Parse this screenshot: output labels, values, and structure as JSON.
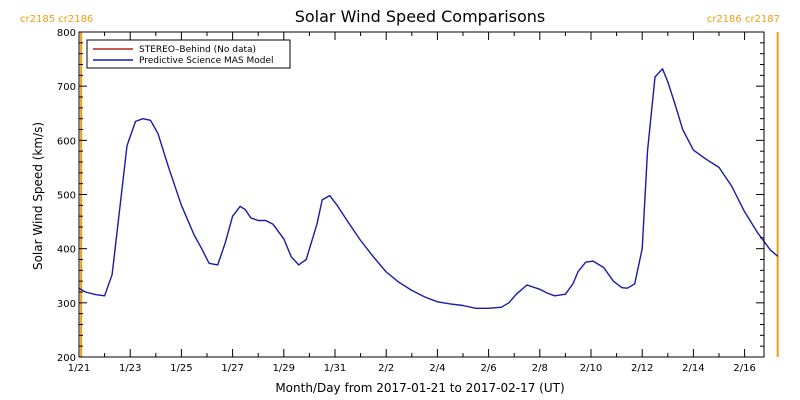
{
  "chart_data": {
    "type": "line",
    "title": "Solar Wind Speed Comparisons",
    "xlabel": "Month/Day from 2017-01-21 to 2017-02-17 (UT)",
    "ylabel": "Solar Wind Speed (km/s)",
    "ylim": [
      200,
      800
    ],
    "xlim": [
      "2017-01-21",
      "2017-02-17"
    ],
    "y_ticks": [
      200,
      300,
      400,
      500,
      600,
      700,
      800
    ],
    "x_ticks": [
      {
        "label": "1/21",
        "date": "2017-01-21"
      },
      {
        "label": "1/23",
        "date": "2017-01-23"
      },
      {
        "label": "1/25",
        "date": "2017-01-25"
      },
      {
        "label": "1/27",
        "date": "2017-01-27"
      },
      {
        "label": "1/29",
        "date": "2017-01-29"
      },
      {
        "label": "1/31",
        "date": "2017-01-31"
      },
      {
        "label": "2/2",
        "date": "2017-02-02"
      },
      {
        "label": "2/4",
        "date": "2017-02-04"
      },
      {
        "label": "2/6",
        "date": "2017-02-06"
      },
      {
        "label": "2/8",
        "date": "2017-02-08"
      },
      {
        "label": "2/10",
        "date": "2017-02-10"
      },
      {
        "label": "2/12",
        "date": "2017-02-12"
      },
      {
        "label": "2/14",
        "date": "2017-02-14"
      },
      {
        "label": "2/16",
        "date": "2017-02-16"
      }
    ],
    "legend_position": "top-left",
    "grid": false,
    "carrington_markers": [
      {
        "label": "cr2185 cr2186",
        "date": "2017-01-21T02:00",
        "color": "#f39c12"
      },
      {
        "label": "cr2186 cr2187",
        "date": "2017-02-17T07:00",
        "color": "#f39c12"
      }
    ],
    "series": [
      {
        "name": "STEREO–Behind (No data)",
        "color": "#b22222",
        "x": [],
        "y": []
      },
      {
        "name": "Predictive Science MAS Model",
        "color": "#1a1aa8",
        "x": [
          "2017-01-21T00:00",
          "2017-01-21T06:00",
          "2017-01-21T16:00",
          "2017-01-22T00:00",
          "2017-01-22T07:00",
          "2017-01-22T14:00",
          "2017-01-22T21:00",
          "2017-01-23T05:00",
          "2017-01-23T12:00",
          "2017-01-23T19:00",
          "2017-01-24T02:00",
          "2017-01-24T12:00",
          "2017-01-25T00:00",
          "2017-01-25T12:00",
          "2017-01-25T19:00",
          "2017-01-26T02:00",
          "2017-01-26T10:00",
          "2017-01-26T17:00",
          "2017-01-27T00:00",
          "2017-01-27T07:00",
          "2017-01-27T12:00",
          "2017-01-27T17:00",
          "2017-01-28T00:00",
          "2017-01-28T07:00",
          "2017-01-28T14:00",
          "2017-01-29T00:00",
          "2017-01-29T07:00",
          "2017-01-29T14:00",
          "2017-01-29T21:00",
          "2017-01-30T07:00",
          "2017-01-30T12:00",
          "2017-01-30T19:00",
          "2017-01-31T02:00",
          "2017-01-31T12:00",
          "2017-02-01T00:00",
          "2017-02-01T12:00",
          "2017-02-02T00:00",
          "2017-02-02T12:00",
          "2017-02-03T00:00",
          "2017-02-03T12:00",
          "2017-02-04T00:00",
          "2017-02-04T12:00",
          "2017-02-05T00:00",
          "2017-02-05T12:00",
          "2017-02-06T00:00",
          "2017-02-06T12:00",
          "2017-02-06T19:00",
          "2017-02-07T02:00",
          "2017-02-07T12:00",
          "2017-02-08T00:00",
          "2017-02-08T07:00",
          "2017-02-08T14:00",
          "2017-02-09T00:00",
          "2017-02-09T07:00",
          "2017-02-09T12:00",
          "2017-02-09T19:00",
          "2017-02-10T02:00",
          "2017-02-10T12:00",
          "2017-02-10T21:00",
          "2017-02-11T05:00",
          "2017-02-11T10:00",
          "2017-02-11T17:00",
          "2017-02-12T00:00",
          "2017-02-12T05:00",
          "2017-02-12T12:00",
          "2017-02-12T19:00",
          "2017-02-13T00:00",
          "2017-02-13T07:00",
          "2017-02-13T14:00",
          "2017-02-14T00:00",
          "2017-02-14T12:00",
          "2017-02-15T00:00",
          "2017-02-15T12:00",
          "2017-02-16T00:00",
          "2017-02-16T12:00",
          "2017-02-17T00:00",
          "2017-02-17T07:00"
        ],
        "y": [
          327,
          320,
          315,
          313,
          352,
          470,
          590,
          635,
          640,
          637,
          613,
          550,
          480,
          425,
          400,
          373,
          370,
          410,
          460,
          478,
          472,
          457,
          452,
          452,
          445,
          418,
          385,
          370,
          380,
          445,
          490,
          498,
          480,
          450,
          415,
          385,
          357,
          338,
          323,
          311,
          302,
          298,
          295,
          290,
          290,
          292,
          300,
          316,
          333,
          325,
          318,
          313,
          316,
          335,
          358,
          375,
          377,
          365,
          340,
          328,
          327,
          335,
          400,
          580,
          717,
          732,
          708,
          665,
          620,
          582,
          565,
          550,
          515,
          468,
          430,
          398,
          386
        ]
      }
    ]
  }
}
